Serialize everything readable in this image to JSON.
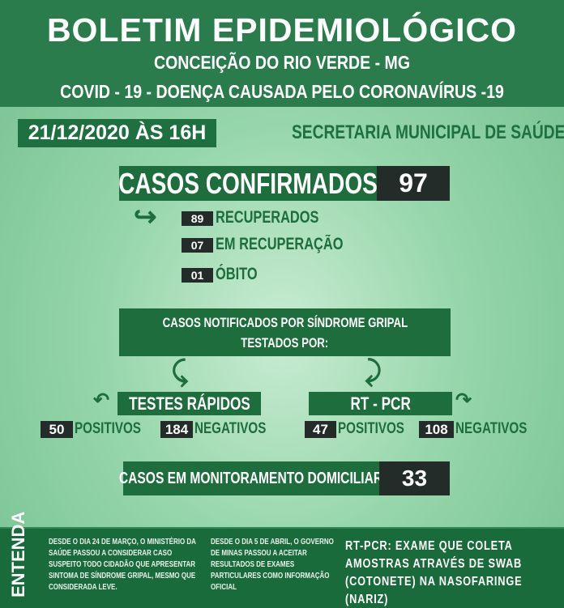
{
  "header": {
    "title": "BOLETIM EPIDEMIOLÓGICO",
    "city": "CONCEIÇÃO DO RIO VERDE - MG",
    "subtitle": "COVID - 19 -  DOENÇA CAUSADA PELO CORONAVÍRUS -19"
  },
  "date": "21/12/2020 ÀS 16H",
  "department": "SECRETARIA MUNICIPAL DE SAÚDE",
  "confirmed": {
    "label": "CASOS CONFIRMADOS",
    "value": "97",
    "items": [
      {
        "value": "89",
        "label": "RECUPERADOS"
      },
      {
        "value": "07",
        "label": "EM RECUPERAÇÃO"
      },
      {
        "value": "01",
        "label": "ÓBITO"
      }
    ]
  },
  "notified": {
    "line1": "CASOS NOTIFICADOS POR SÍNDROME GRIPAL",
    "line2": "TESTADOS POR:"
  },
  "rapid": {
    "label": "TESTES RÁPIDOS",
    "positive": "50",
    "positive_label": "POSITIVOS",
    "negative": "184",
    "negative_label": "NEGATIVOS"
  },
  "pcr": {
    "label": "RT - PCR",
    "positive": "47",
    "positive_label": "POSITIVOS",
    "negative": "108",
    "negative_label": "NEGATIVOS"
  },
  "monitoring": {
    "label": "CASOS EM MONITORAMENTO DOMICILIAR",
    "value": "33"
  },
  "footer": {
    "heading": "ENTENDA",
    "col1": "DESDE O DIA 24 DE MARÇO, O MINISTÉRIO DA SAÚDE PASSOU A CONSIDERAR CASO SUSPEITO TODO CIDADÃO QUE APRESENTAR SINTOMA DE SÍNDROME GRIPAL, MESMO QUE CONSIDERADA LEVE.",
    "col2": "DESDE O DIA 5 DE ABRIL, O GOVERNO DE MINAS PASSOU A ACEITAR RESULTADOS DE EXAMES PARTICULARES COMO INFORMAÇÃO OFICIAL",
    "col3": "RT-PCR: EXAME QUE COLETA AMOSTRAS ATRAVÉS DE SWAB (COTONETE) NA NASOFARINGE (NARIZ)"
  },
  "colors": {
    "header": "#2b7c4c",
    "box": "#1d6d3d",
    "number_box": "#242c29",
    "background": "#96d6ab"
  }
}
